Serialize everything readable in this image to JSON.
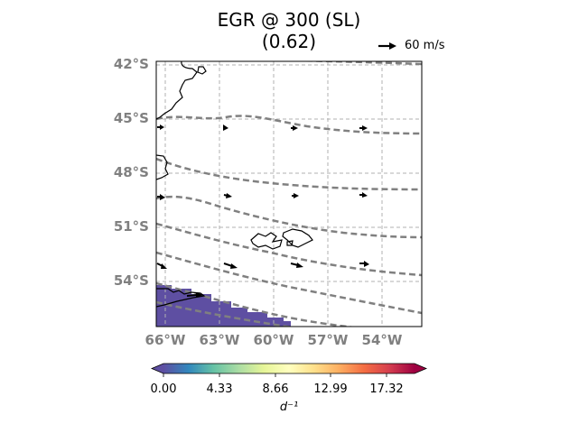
{
  "title": {
    "line1": "EGR @ 300 (SL)",
    "line2": "(0.62)"
  },
  "reference_vector": {
    "label": "60 m/s",
    "speed": 60
  },
  "colors": {
    "contour": "#808080",
    "grid": "#b0b0b0",
    "coast": "#000000",
    "low_fill": "#5e4fa2",
    "tick_text": "#808080"
  },
  "map": {
    "lat_ticks": [
      "42°S",
      "45°S",
      "48°S",
      "51°S",
      "54°S"
    ],
    "lon_ticks": [
      "66°W",
      "63°W",
      "60°W",
      "57°W",
      "54°W"
    ],
    "gridlines": true
  },
  "colorbar": {
    "ticks": [
      "0.00",
      "4.33",
      "8.66",
      "12.99",
      "17.32"
    ],
    "label": "d⁻¹",
    "colormap": "Spectral_r",
    "extend": "both",
    "colors": [
      "#5e4fa2",
      "#3288bd",
      "#66c2a5",
      "#abdda4",
      "#e6f598",
      "#ffffbf",
      "#fee08b",
      "#fdae61",
      "#f46d43",
      "#d53e4f",
      "#9e0142"
    ]
  }
}
